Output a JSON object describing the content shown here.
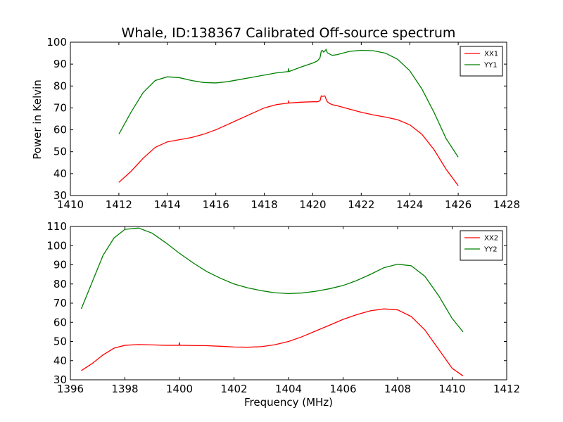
{
  "title": "Whale, ID:138367 Calibrated Off-source spectrum",
  "ylabel": "Power in Kelvin",
  "xlabel": "Frequency (MHz)",
  "chart_data": [
    {
      "type": "line",
      "xlim": [
        1410,
        1428
      ],
      "ylim": [
        30,
        100
      ],
      "xticks": [
        1410,
        1412,
        1414,
        1416,
        1418,
        1420,
        1422,
        1424,
        1426,
        1428
      ],
      "yticks": [
        30,
        40,
        50,
        60,
        70,
        80,
        90,
        100
      ],
      "legend_position": "top-right",
      "series": [
        {
          "name": "XX1",
          "color": "#ff0000",
          "x": [
            1412.0,
            1412.5,
            1413.0,
            1413.5,
            1414.0,
            1414.5,
            1415.0,
            1415.5,
            1416.0,
            1416.5,
            1417.0,
            1417.5,
            1418.0,
            1418.5,
            1418.98,
            1419.0,
            1419.02,
            1419.5,
            1420.0,
            1420.2,
            1420.3,
            1420.35,
            1420.4,
            1420.5,
            1420.55,
            1420.6,
            1420.7,
            1420.8,
            1421.0,
            1421.5,
            1422.0,
            1422.5,
            1423.0,
            1423.5,
            1424.0,
            1424.5,
            1425.0,
            1425.5,
            1426.0
          ],
          "y": [
            36,
            41,
            47,
            52,
            54.5,
            55.5,
            56.5,
            58,
            60,
            62.5,
            65,
            67.5,
            70,
            71.5,
            72.2,
            73,
            72.2,
            72.6,
            72.8,
            72.8,
            73.3,
            75.5,
            75.3,
            75.5,
            74,
            72.8,
            72,
            71.5,
            71,
            69.5,
            68,
            66.8,
            65.8,
            64.6,
            62.3,
            58,
            51,
            42,
            34.5
          ]
        },
        {
          "name": "YY1",
          "color": "#008000",
          "x": [
            1412.0,
            1412.5,
            1413.0,
            1413.5,
            1414.0,
            1414.5,
            1415.0,
            1415.5,
            1416.0,
            1416.5,
            1417.0,
            1417.5,
            1418.0,
            1418.5,
            1418.98,
            1419.0,
            1419.02,
            1419.5,
            1420.0,
            1420.2,
            1420.3,
            1420.35,
            1420.4,
            1420.45,
            1420.5,
            1420.55,
            1420.6,
            1420.8,
            1421.0,
            1421.5,
            1422.0,
            1422.5,
            1423.0,
            1423.5,
            1424.0,
            1424.5,
            1425.0,
            1425.5,
            1426.0
          ],
          "y": [
            58,
            68,
            77,
            82.5,
            84.2,
            83.8,
            82.5,
            81.6,
            81.4,
            82,
            83,
            84,
            85,
            86,
            86.6,
            88,
            86.6,
            88.6,
            90.5,
            91.5,
            93,
            96,
            96.2,
            95.5,
            96,
            96.7,
            95.2,
            94,
            94.3,
            95.8,
            96.3,
            96.1,
            95,
            92.2,
            87,
            78.7,
            68,
            56,
            47.5
          ]
        }
      ]
    },
    {
      "type": "line",
      "xlim": [
        1396,
        1412
      ],
      "ylim": [
        30,
        110
      ],
      "xticks": [
        1396,
        1398,
        1400,
        1402,
        1404,
        1406,
        1408,
        1410,
        1412
      ],
      "yticks": [
        30,
        40,
        50,
        60,
        70,
        80,
        90,
        100,
        110
      ],
      "legend_position": "top-right",
      "series": [
        {
          "name": "XX2",
          "color": "#ff0000",
          "x": [
            1396.4,
            1396.8,
            1397.2,
            1397.6,
            1398.0,
            1398.5,
            1399.0,
            1399.5,
            1399.98,
            1400.0,
            1400.02,
            1400.5,
            1401.0,
            1401.5,
            1402.0,
            1402.5,
            1403.0,
            1403.5,
            1404.0,
            1404.5,
            1405.0,
            1405.5,
            1406.0,
            1406.5,
            1407.0,
            1407.5,
            1408.0,
            1408.5,
            1409.0,
            1409.5,
            1410.0,
            1410.4
          ],
          "y": [
            34.8,
            38.5,
            43,
            46.5,
            48,
            48.4,
            48.2,
            48,
            48,
            49.5,
            48,
            47.9,
            47.8,
            47.5,
            47.1,
            47,
            47.3,
            48.3,
            50,
            52.5,
            55.5,
            58.5,
            61.5,
            64,
            66,
            67,
            66.5,
            63,
            56,
            46,
            36,
            32
          ]
        },
        {
          "name": "YY2",
          "color": "#008000",
          "x": [
            1396.4,
            1396.8,
            1397.2,
            1397.6,
            1398.0,
            1398.5,
            1399.0,
            1399.5,
            1400.0,
            1400.5,
            1401.0,
            1401.5,
            1402.0,
            1402.5,
            1403.0,
            1403.5,
            1404.0,
            1404.5,
            1405.0,
            1405.5,
            1406.0,
            1406.5,
            1407.0,
            1407.5,
            1408.0,
            1408.5,
            1409.0,
            1409.5,
            1410.0,
            1410.4
          ],
          "y": [
            67,
            81,
            95,
            104,
            108.5,
            109.2,
            106.5,
            101.5,
            96,
            91,
            86.5,
            83,
            80,
            78,
            76.5,
            75.4,
            75,
            75.3,
            76.2,
            77.5,
            79.2,
            81.8,
            85,
            88.5,
            90.3,
            89.5,
            84,
            74,
            62,
            55
          ]
        }
      ]
    }
  ]
}
